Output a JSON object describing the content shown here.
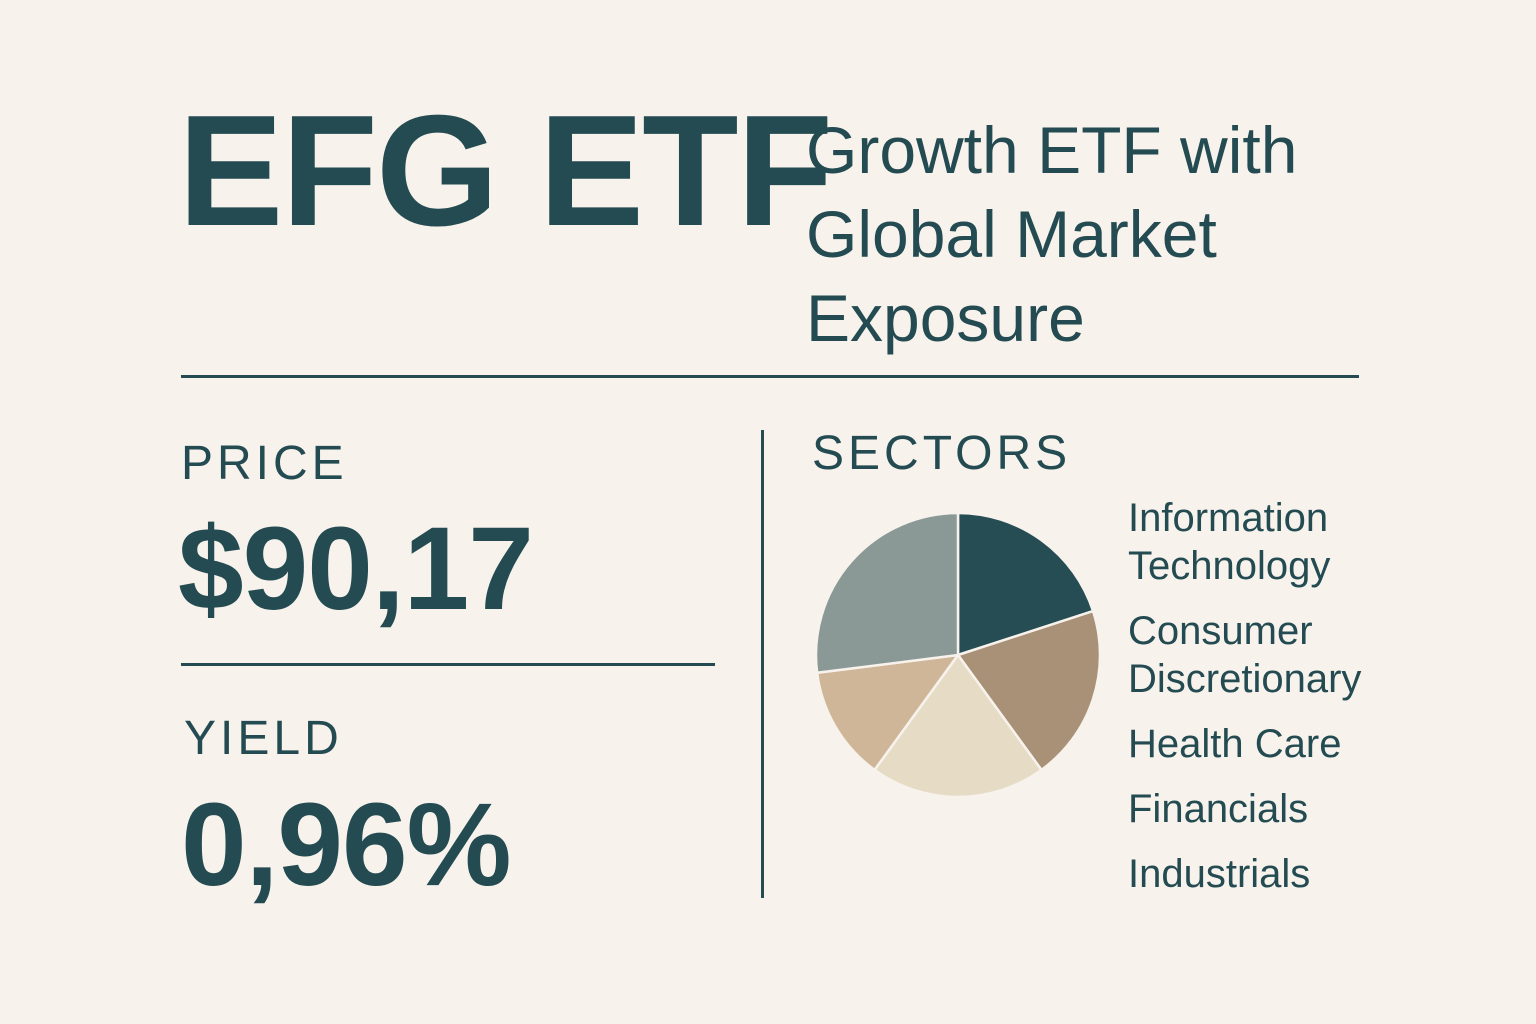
{
  "header": {
    "ticker": "EFG ETF",
    "subtitle_lines": [
      "Growth ETF with",
      "Global Market",
      "Exposure"
    ]
  },
  "price": {
    "label": "PRICE",
    "value": "$90,17"
  },
  "yield": {
    "label": "YIELD",
    "value": "0,96%"
  },
  "sectors": {
    "label": "SECTORS",
    "legend": [
      {
        "lines": [
          "Information",
          "Technology"
        ]
      },
      {
        "lines": [
          "Consumer",
          "Discretionary"
        ]
      },
      {
        "lines": [
          "Health Care"
        ]
      },
      {
        "lines": [
          "Financials"
        ]
      },
      {
        "lines": [
          "Industrials"
        ]
      }
    ]
  },
  "chart_data": {
    "type": "pie",
    "title": "SECTORS",
    "categories": [
      "Information Technology",
      "Consumer Discretionary",
      "Health Care",
      "Financials",
      "Industrials"
    ],
    "values": [
      20,
      20,
      20,
      13,
      27
    ],
    "colors": [
      "#264d53",
      "#a89177",
      "#e6dcc6",
      "#cfb698",
      "#8a9896"
    ],
    "start_angle_deg": 0,
    "direction": "clockwise",
    "slice_border": "#f7f2ec"
  },
  "colors": {
    "background": "#f7f2ec",
    "text": "#234b51"
  }
}
